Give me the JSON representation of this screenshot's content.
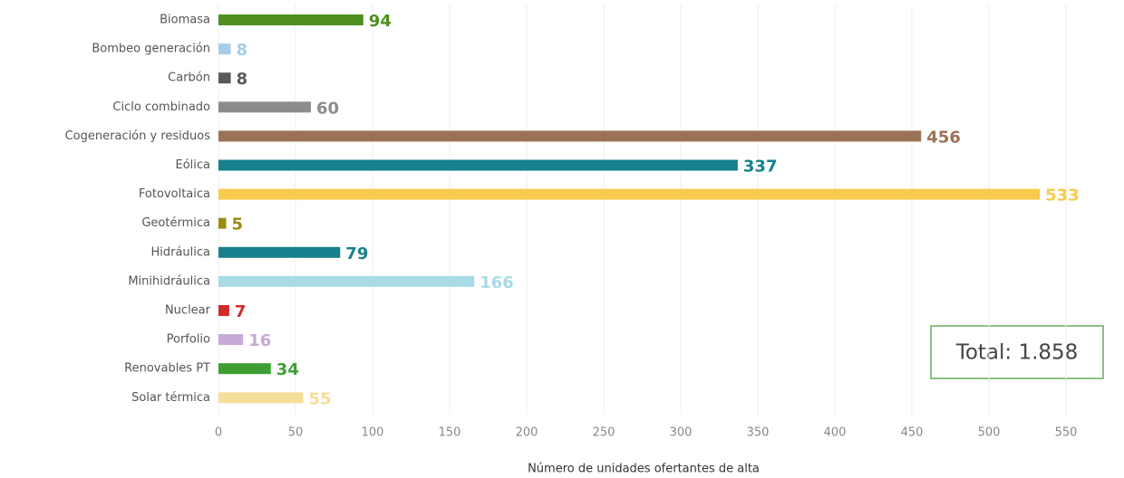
{
  "chart_data": {
    "type": "bar",
    "orientation": "horizontal",
    "categories": [
      "Biomasa",
      "Bombeo generación",
      "Carbón",
      "Ciclo combinado",
      "Cogeneración y residuos",
      "Eólica",
      "Fotovoltaica",
      "Geotérmica",
      "Hidráulica",
      "Minihidráulica",
      "Nuclear",
      "Porfolio",
      "Renovables PT",
      "Solar térmica"
    ],
    "values": [
      94,
      8,
      8,
      60,
      456,
      337,
      533,
      5,
      79,
      166,
      7,
      16,
      34,
      55
    ],
    "colors": [
      "#4e8f1f",
      "#a6cde8",
      "#5a5a5a",
      "#8c8c8c",
      "#9c7256",
      "#16818d",
      "#f7cb4d",
      "#9a8c12",
      "#17808c",
      "#a8dbe6",
      "#d12a2a",
      "#c6a9d6",
      "#3e9e34",
      "#f5dd9a"
    ],
    "xlim": [
      0,
      580
    ],
    "xticks": [
      0,
      50,
      100,
      150,
      200,
      250,
      300,
      350,
      400,
      450,
      500,
      550
    ],
    "grid": true,
    "xlabel": "Número de unidades ofertantes de alta",
    "annotation": "Total: 1.858"
  }
}
